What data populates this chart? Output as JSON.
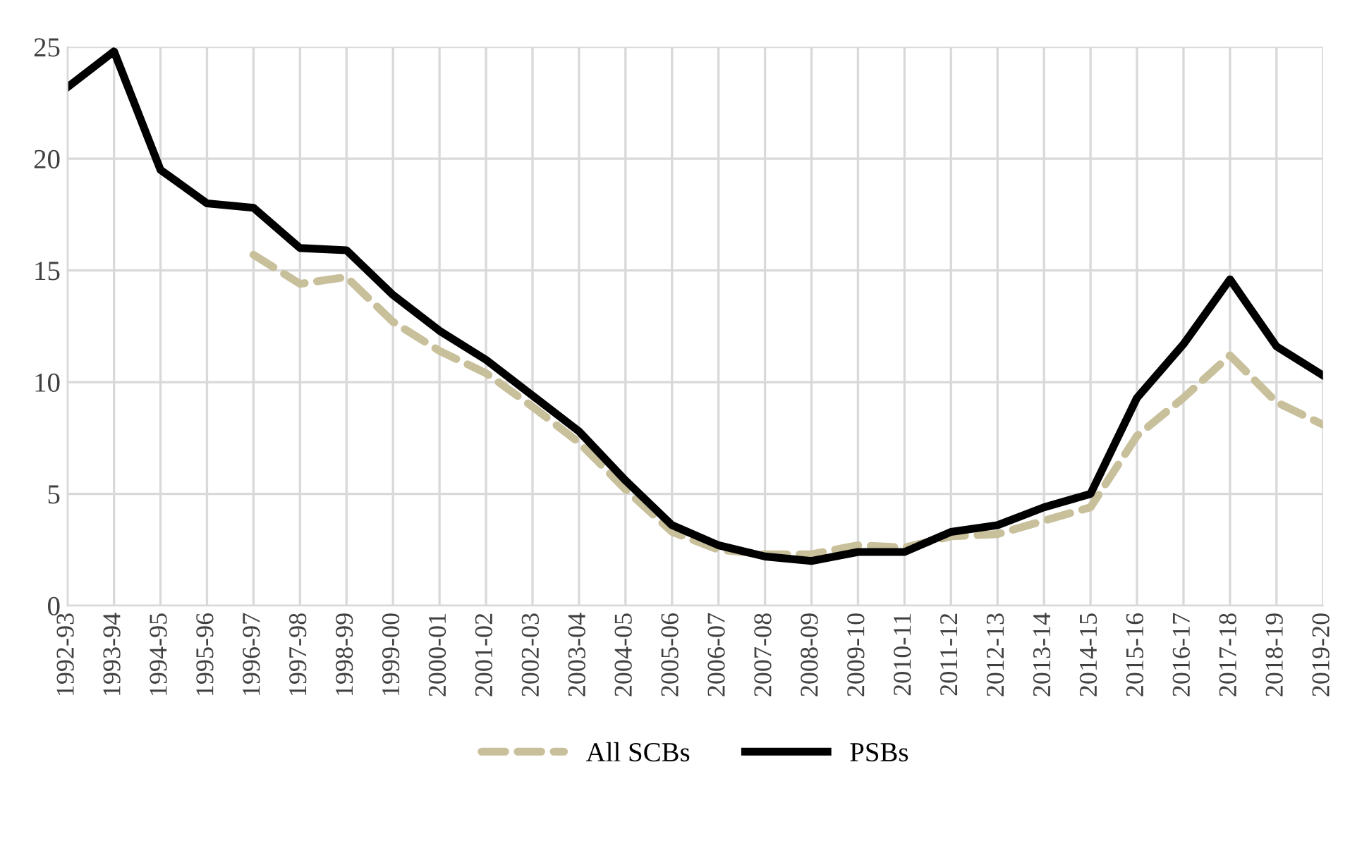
{
  "chart_data": {
    "type": "line",
    "categories": [
      "1992-93",
      "1993-94",
      "1994-95",
      "1995-96",
      "1996-97",
      "1997-98",
      "1998-99",
      "1999-00",
      "2000-01",
      "2001-02",
      "2002-03",
      "2003-04",
      "2004-05",
      "2005-06",
      "2006-07",
      "2007-08",
      "2008-09",
      "2009-10",
      "2010-11",
      "2011-12",
      "2012-13",
      "2013-14",
      "2014-15",
      "2015-16",
      "2016-17",
      "2017-18",
      "2018-19",
      "2019-20"
    ],
    "series": [
      {
        "name": "All SCBs",
        "color": "#c8bf9b",
        "line_style": "dashed",
        "values": [
          null,
          null,
          null,
          null,
          15.7,
          14.4,
          14.7,
          12.7,
          11.4,
          10.4,
          8.9,
          7.3,
          5.2,
          3.3,
          2.5,
          2.3,
          2.3,
          2.7,
          2.6,
          3.1,
          3.2,
          3.8,
          4.4,
          7.6,
          9.3,
          11.2,
          9.1,
          8.1
        ]
      },
      {
        "name": "PSBs",
        "color": "#000000",
        "line_style": "solid",
        "values": [
          23.2,
          24.8,
          19.5,
          18.0,
          17.8,
          16.0,
          15.9,
          13.9,
          12.3,
          11.0,
          9.4,
          7.8,
          5.6,
          3.6,
          2.7,
          2.2,
          2.0,
          2.4,
          2.4,
          3.3,
          3.6,
          4.4,
          5.0,
          9.3,
          11.7,
          14.6,
          11.6,
          10.3
        ]
      }
    ],
    "ylim": [
      0,
      25
    ],
    "yticks": [
      0,
      5,
      10,
      15,
      20,
      25
    ],
    "grid": true,
    "legend": "bottom",
    "marker": "none"
  }
}
